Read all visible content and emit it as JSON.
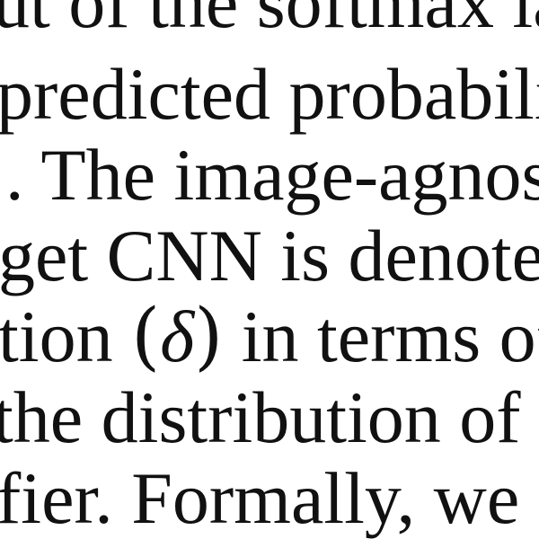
{
  "document": {
    "lines": [
      "ut of the softmax lay",
      "predicted probabiliti",
      ". The image-agnosti",
      "get CNN is denoted",
      {
        "before": "tion ",
        "paren_open": "(",
        "symbol": "δ",
        "paren_close": ")",
        "after": " in terms of"
      },
      "the distribution of s",
      "fier. Formally, we se"
    ]
  }
}
